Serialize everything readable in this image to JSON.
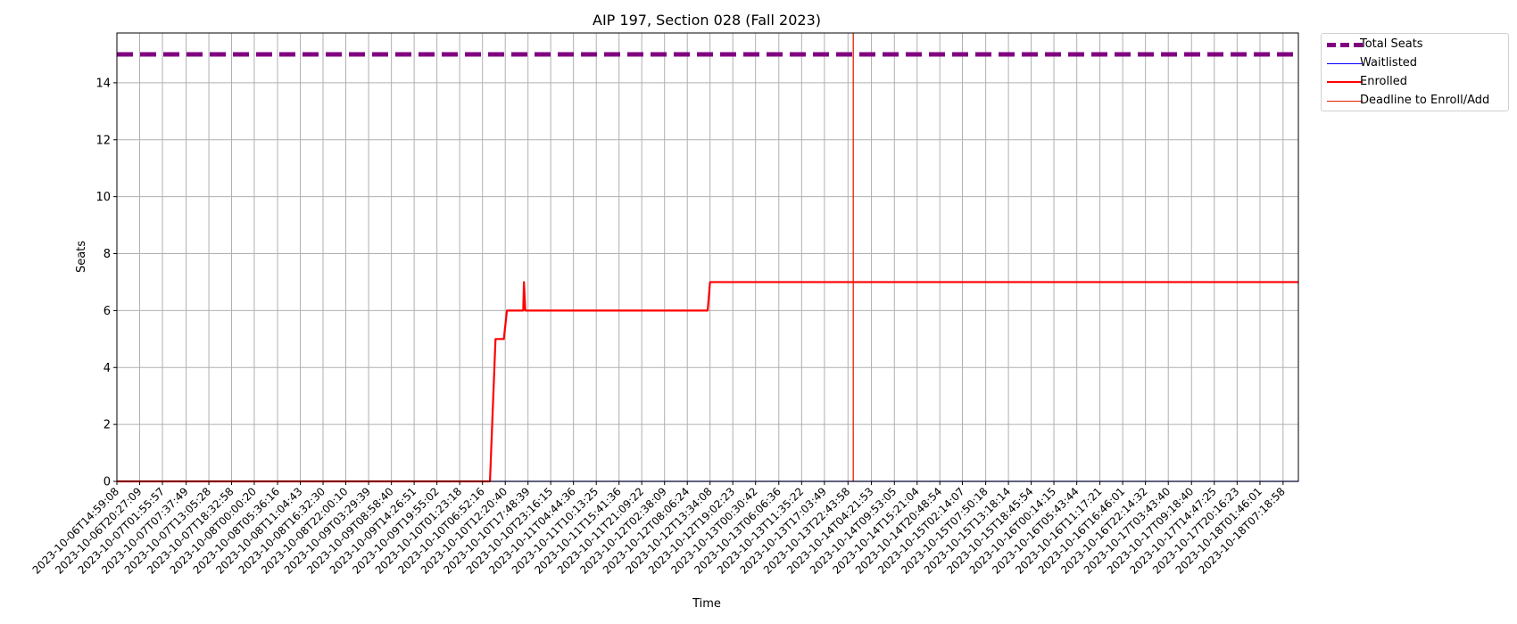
{
  "chart_data": {
    "type": "line",
    "title": "AIP 197, Section 028 (Fall 2023)",
    "xlabel": "Time",
    "ylabel": "Seats",
    "ylim": [
      0,
      15.75
    ],
    "y_ticks": [
      0,
      2,
      4,
      6,
      8,
      10,
      12,
      14
    ],
    "grid": true,
    "legend_position": "outside-top-right",
    "x_tick_labels": [
      "2023-10-06T14:59:08",
      "2023-10-06T20:27:09",
      "2023-10-07T01:55:57",
      "2023-10-07T07:37:49",
      "2023-10-07T13:05:28",
      "2023-10-07T18:32:58",
      "2023-10-08T00:00:20",
      "2023-10-08T05:36:16",
      "2023-10-08T11:04:43",
      "2023-10-08T16:32:30",
      "2023-10-08T22:00:10",
      "2023-10-09T03:29:39",
      "2023-10-09T08:58:40",
      "2023-10-09T14:26:51",
      "2023-10-09T19:55:02",
      "2023-10-10T01:23:18",
      "2023-10-10T06:52:16",
      "2023-10-10T12:20:40",
      "2023-10-10T17:48:39",
      "2023-10-10T23:16:15",
      "2023-10-11T04:44:36",
      "2023-10-11T10:13:25",
      "2023-10-11T15:41:36",
      "2023-10-11T21:09:22",
      "2023-10-12T02:38:09",
      "2023-10-12T08:06:24",
      "2023-10-12T13:34:08",
      "2023-10-12T19:02:23",
      "2023-10-13T00:30:42",
      "2023-10-13T06:06:36",
      "2023-10-13T11:35:22",
      "2023-10-13T17:03:49",
      "2023-10-13T22:43:58",
      "2023-10-14T04:21:53",
      "2023-10-14T09:53:05",
      "2023-10-14T15:21:04",
      "2023-10-14T20:48:54",
      "2023-10-15T02:14:07",
      "2023-10-15T07:50:18",
      "2023-10-15T13:18:14",
      "2023-10-15T18:45:54",
      "2023-10-16T00:14:15",
      "2023-10-16T05:43:44",
      "2023-10-16T11:17:21",
      "2023-10-16T16:46:01",
      "2023-10-16T22:14:32",
      "2023-10-17T03:43:40",
      "2023-10-17T09:18:40",
      "2023-10-17T14:47:25",
      "2023-10-17T20:16:23",
      "2023-10-18T01:46:01",
      "2023-10-18T07:18:58"
    ],
    "x_range": [
      "2023-10-06T14:59:08",
      "2023-10-18T11:00:00"
    ],
    "series": [
      {
        "name": "Total Seats",
        "color": "#800080",
        "style": "dashed",
        "points": [
          [
            "2023-10-06T14:59:08",
            15
          ],
          [
            "2023-10-18T11:00:00",
            15
          ]
        ]
      },
      {
        "name": "Waitlisted",
        "color": "#0000ff",
        "style": "solid",
        "points": [
          [
            "2023-10-06T14:59:08",
            0
          ],
          [
            "2023-10-18T11:00:00",
            0
          ]
        ]
      },
      {
        "name": "Enrolled",
        "color": "#ff0000",
        "style": "solid",
        "points": [
          [
            "2023-10-06T14:59:08",
            0
          ],
          [
            "2023-10-10T08:40:00",
            0
          ],
          [
            "2023-10-10T10:00:00",
            5
          ],
          [
            "2023-10-10T12:00:00",
            5
          ],
          [
            "2023-10-10T12:45:00",
            6
          ],
          [
            "2023-10-10T16:40:00",
            6
          ],
          [
            "2023-10-10T16:50:00",
            7
          ],
          [
            "2023-10-10T17:10:00",
            6
          ],
          [
            "2023-10-12T13:00:00",
            6
          ],
          [
            "2023-10-12T13:34:08",
            7
          ],
          [
            "2023-10-18T11:00:00",
            7
          ]
        ]
      }
    ],
    "deadline": {
      "name": "Deadline to Enroll/Add",
      "color": "#e02000",
      "x": "2023-10-14T00:00:00"
    }
  }
}
